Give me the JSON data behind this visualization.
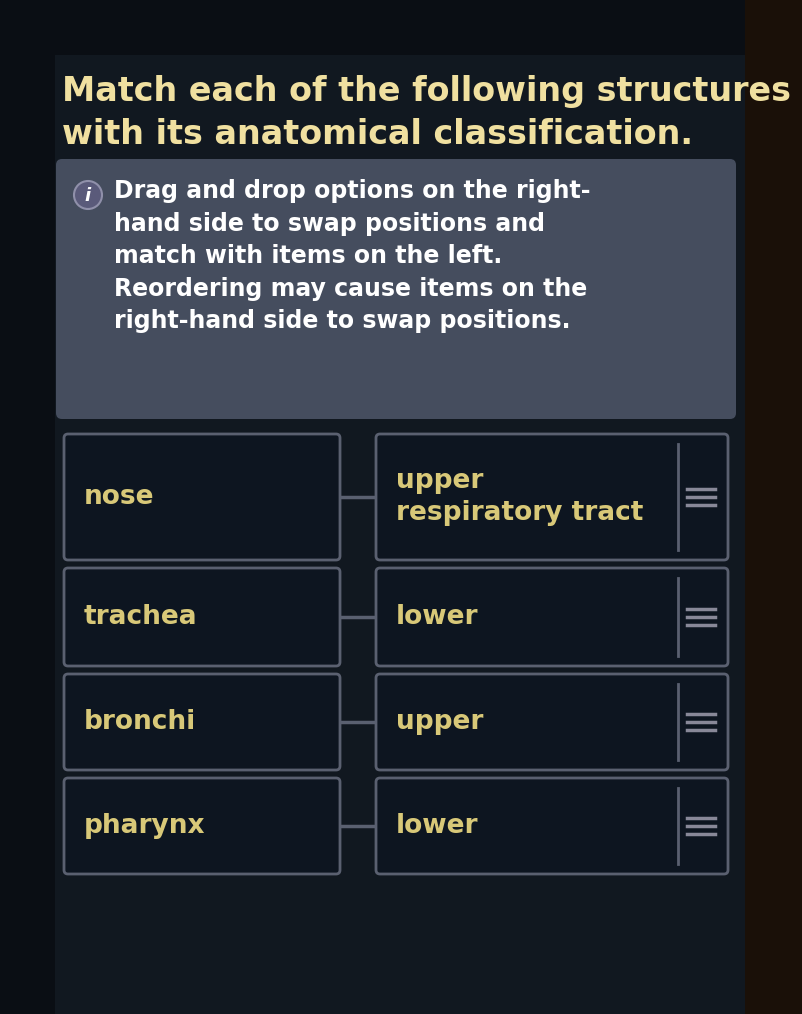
{
  "title_line1": "Match each of the following structures",
  "title_line2": "with its anatomical classification.",
  "instruction_text": "Drag and drop options on the right-\nhand side to swap positions and\nmatch with items on the left.\nReordering may cause items on the\nright-hand side to swap positions.",
  "left_items": [
    "nose",
    "trachea",
    "bronchi",
    "pharynx"
  ],
  "right_items": [
    "upper\nrespiratory tract",
    "lower",
    "upper",
    "lower"
  ],
  "bg_color": "#111820",
  "content_bg_color": "#141c26",
  "box_bg_color": "#0d1520",
  "box_border_color": "#5a6070",
  "instruction_bg_color": "#454d5e",
  "title_color": "#f0e0a0",
  "text_color": "#d8c878",
  "handle_bar_color": "#888898",
  "connector_color": "#5a6070",
  "top_bar_color": "#0a0e14"
}
